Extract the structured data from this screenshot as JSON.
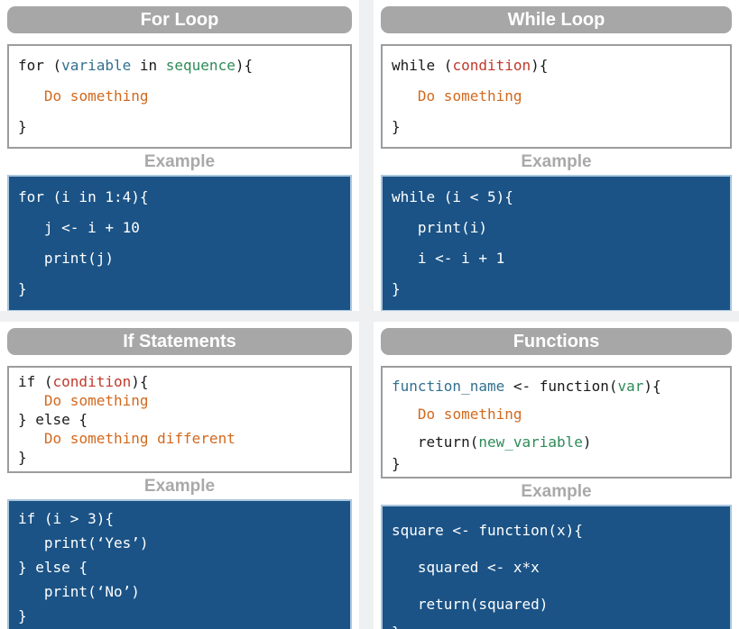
{
  "colors": {
    "page_gap_bg": "#eef0f1",
    "card_bg": "#ffffff",
    "header_pill_bg": "#a7a7a7",
    "header_pill_text": "#ffffff",
    "example_label_text": "#a9a9a9",
    "syntax_box_border": "#9c9c9c",
    "example_box_bg": "#1b5386",
    "example_box_border": "#aac7de",
    "example_code_text": "#ffffff"
  },
  "token_colors": {
    "plain": "#1a1a1a",
    "variable": "#31708f",
    "sequence": "#2e8b57",
    "condition": "#c0392b",
    "action": "#d2691e"
  },
  "cards": [
    {
      "id": "for-loop",
      "title": "For Loop",
      "example_label": "Example",
      "syntax": [
        [
          {
            "text": "for (",
            "color": "plain"
          },
          {
            "text": "variable",
            "color": "variable"
          },
          {
            "text": " in ",
            "color": "plain"
          },
          {
            "text": "sequence",
            "color": "sequence"
          },
          {
            "text": "){",
            "color": "plain"
          }
        ],
        [
          {
            "text": "   ",
            "color": "plain"
          },
          {
            "text": "Do something",
            "color": "action"
          }
        ],
        [
          {
            "text": "}",
            "color": "plain"
          }
        ]
      ],
      "example": [
        "for (i in 1:4){",
        "   j <- i + 10",
        "   print(j)",
        "}"
      ]
    },
    {
      "id": "while-loop",
      "title": "While Loop",
      "example_label": "Example",
      "syntax": [
        [
          {
            "text": "while (",
            "color": "plain"
          },
          {
            "text": "condition",
            "color": "condition"
          },
          {
            "text": "){",
            "color": "plain"
          }
        ],
        [
          {
            "text": "   ",
            "color": "plain"
          },
          {
            "text": "Do something",
            "color": "action"
          }
        ],
        [
          {
            "text": "}",
            "color": "plain"
          }
        ]
      ],
      "example": [
        "while (i < 5){",
        "   print(i)",
        "   i <- i + 1",
        "}"
      ]
    },
    {
      "id": "if-statements",
      "title": "If Statements",
      "example_label": "Example",
      "syntax": [
        [
          {
            "text": "if (",
            "color": "plain"
          },
          {
            "text": "condition",
            "color": "condition"
          },
          {
            "text": "){",
            "color": "plain"
          }
        ],
        [
          {
            "text": "   ",
            "color": "plain"
          },
          {
            "text": "Do something",
            "color": "action"
          }
        ],
        [
          {
            "text": "} else {",
            "color": "plain"
          }
        ],
        [
          {
            "text": "   ",
            "color": "plain"
          },
          {
            "text": "Do something different",
            "color": "action"
          }
        ],
        [
          {
            "text": "}",
            "color": "plain"
          }
        ]
      ],
      "example": [
        "if (i > 3){",
        "   print(‘Yes’)",
        "} else {",
        "   print(‘No’)",
        "}"
      ]
    },
    {
      "id": "functions",
      "title": "Functions",
      "example_label": "Example",
      "syntax": [
        [
          {
            "text": "function_name",
            "color": "variable"
          },
          {
            "text": " <- function(",
            "color": "plain"
          },
          {
            "text": "var",
            "color": "sequence"
          },
          {
            "text": "){",
            "color": "plain"
          }
        ],
        [
          {
            "text": "   ",
            "color": "plain"
          },
          {
            "text": "Do something",
            "color": "action"
          }
        ],
        [
          {
            "text": "   return(",
            "color": "plain"
          },
          {
            "text": "new_variable",
            "color": "sequence"
          },
          {
            "text": ")",
            "color": "plain"
          }
        ],
        [
          {
            "text": "}",
            "color": "plain"
          }
        ]
      ],
      "example": [
        "square <- function(x){",
        "   squared <- x*x",
        "   return(squared)",
        "}"
      ]
    }
  ]
}
